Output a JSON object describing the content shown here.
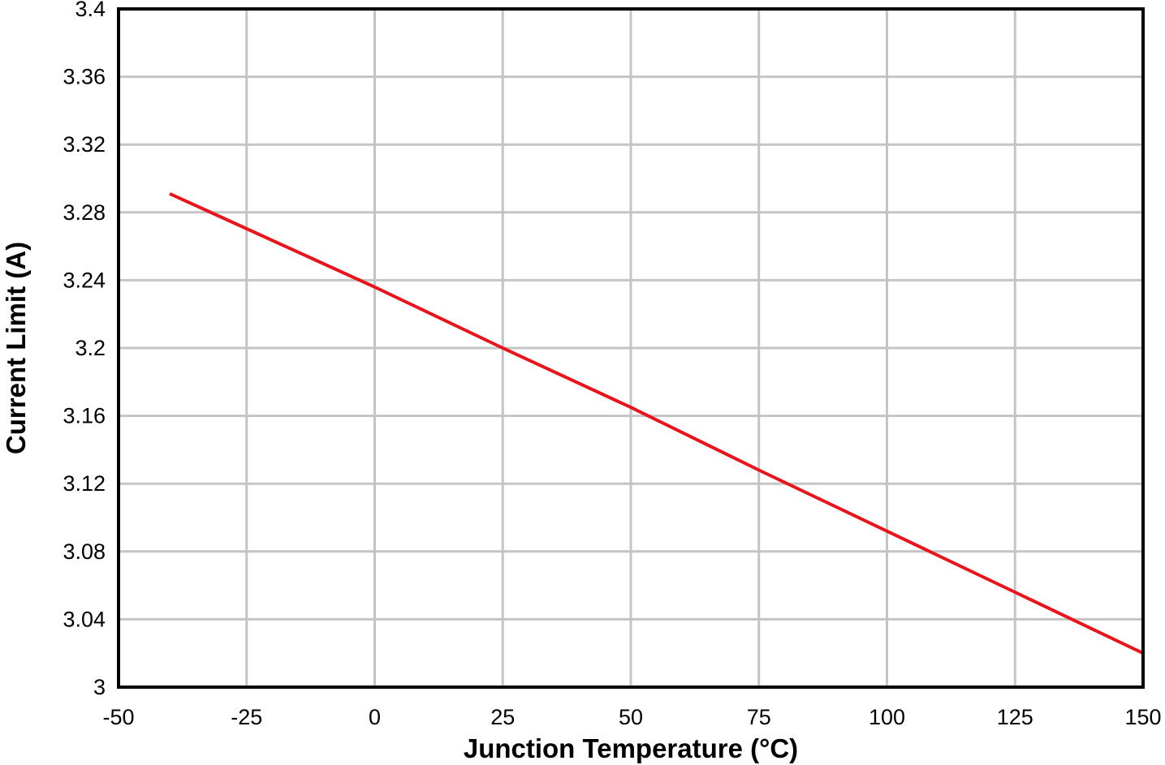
{
  "chart_data": {
    "type": "line",
    "title": "",
    "xlabel": "Junction Temperature (°C)",
    "ylabel": "Current Limit (A)",
    "xlim": [
      -50,
      150
    ],
    "ylim": [
      3,
      3.4
    ],
    "x_ticks": [
      -50,
      -25,
      0,
      25,
      50,
      75,
      100,
      125,
      150
    ],
    "y_ticks": [
      3,
      3.04,
      3.08,
      3.12,
      3.16,
      3.2,
      3.24,
      3.28,
      3.32,
      3.36,
      3.4
    ],
    "x_tick_labels": [
      "-50",
      "-25",
      "0",
      "25",
      "50",
      "75",
      "100",
      "125",
      "150"
    ],
    "y_tick_labels": [
      "3",
      "3.04",
      "3.08",
      "3.12",
      "3.16",
      "3.2",
      "3.24",
      "3.28",
      "3.32",
      "3.36",
      "3.4"
    ],
    "grid": true,
    "series": [
      {
        "color": "#e8141c",
        "x": [
          -40,
          0,
          25,
          50,
          75,
          100,
          125,
          150
        ],
        "y": [
          3.291,
          3.236,
          3.2,
          3.165,
          3.128,
          3.092,
          3.056,
          3.02
        ]
      }
    ]
  }
}
